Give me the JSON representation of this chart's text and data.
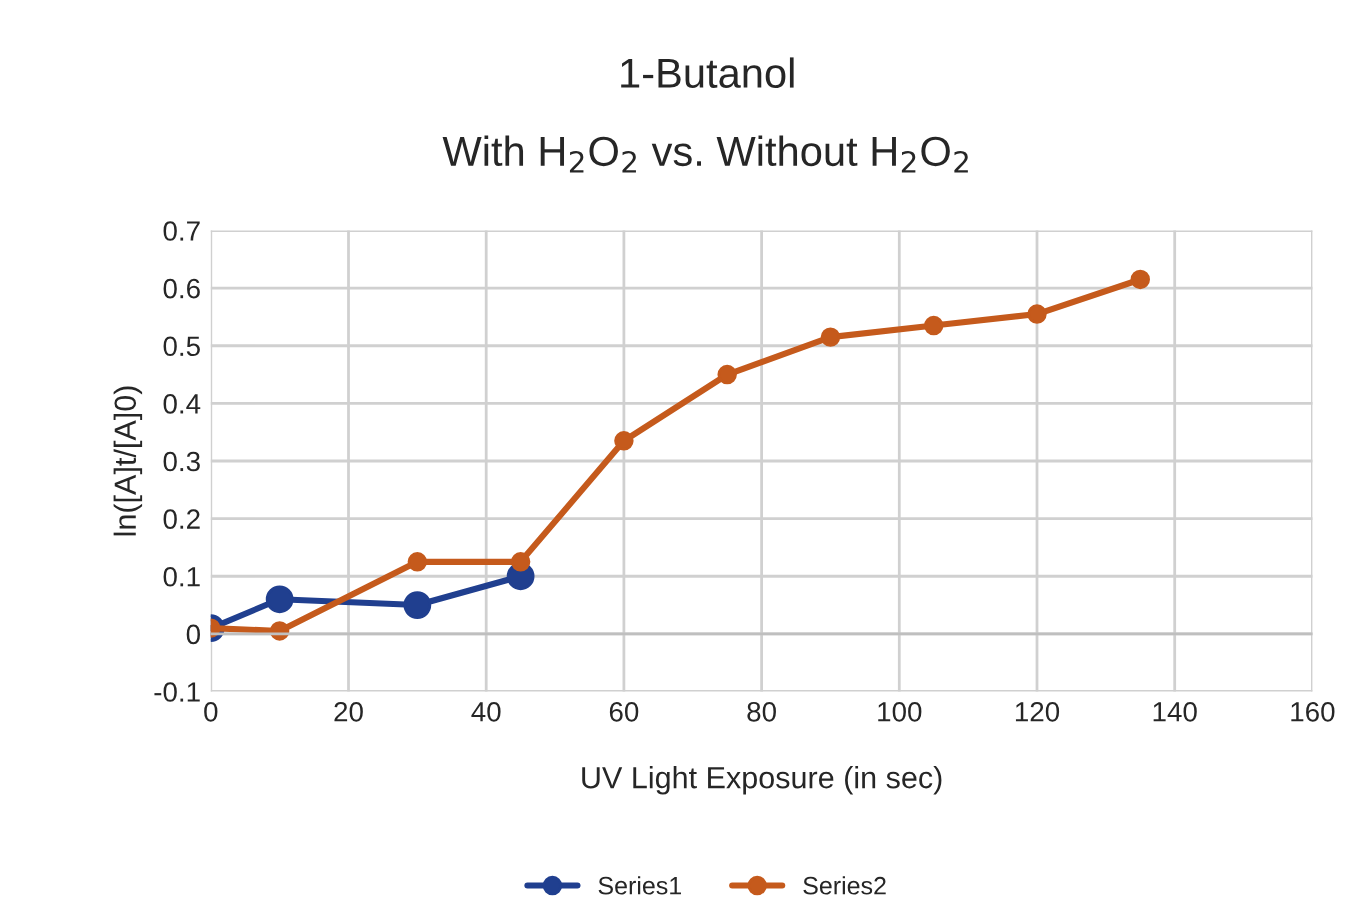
{
  "chart_data": {
    "type": "line",
    "title": "1-Butanol",
    "subtitle": "With H$_{2}$O$_{2}$ vs. Without H$_{2}$O$_{2}$",
    "xlabel": "UV Light Exposure (in sec)",
    "ylabel": "ln([A]t/[A]0)",
    "series": [
      {
        "name": "Series1",
        "color": "#203f8f",
        "x": [
          0,
          10,
          30,
          45
        ],
        "values": [
          0.01,
          0.06,
          0.05,
          0.1
        ]
      },
      {
        "name": "Series2",
        "color": "#c55a1c",
        "x": [
          0,
          10,
          30,
          45,
          60,
          75,
          90,
          105,
          120,
          135
        ],
        "values": [
          0.01,
          0.005,
          0.125,
          0.125,
          0.335,
          0.45,
          0.515,
          0.535,
          0.555,
          0.615
        ]
      }
    ],
    "xlim": [
      0,
      160
    ],
    "xticks": [
      0,
      20,
      40,
      60,
      80,
      100,
      120,
      140,
      160
    ],
    "ylim": [
      -0.1,
      0.7
    ],
    "yticks": [
      -0.1,
      0,
      0.1,
      0.2,
      0.3,
      0.4,
      0.5,
      0.6,
      0.7
    ],
    "grid": true,
    "legend": "bottom",
    "marker": "circle",
    "line_style": "solid"
  }
}
